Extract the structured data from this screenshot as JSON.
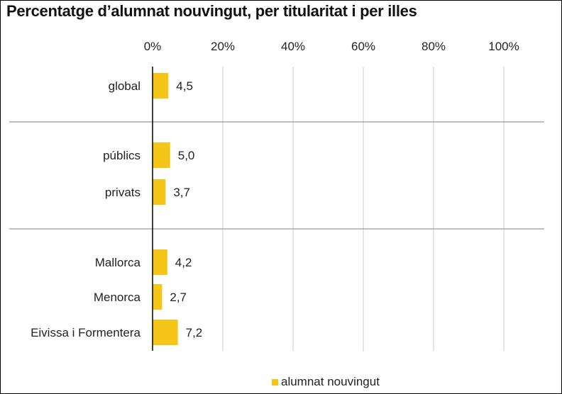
{
  "chart_data": {
    "type": "bar",
    "orientation": "horizontal",
    "title": "Percentatge d’alumnat nouvingut, per titularitat i per illes",
    "x_ticks": [
      "0%",
      "20%",
      "40%",
      "60%",
      "80%",
      "100%"
    ],
    "xlim": [
      0,
      100
    ],
    "grid": true,
    "legend_position": "bottom",
    "colors": {
      "bar": "#f5c518",
      "grid": "#c8c8c8",
      "separator": "#aaaaaa",
      "axis": "#000000"
    },
    "groups": [
      {
        "categories": [
          "global"
        ]
      },
      {
        "categories": [
          "públics",
          "privats"
        ]
      },
      {
        "categories": [
          "Mallorca",
          "Menorca",
          "Eivissa i Formentera"
        ]
      }
    ],
    "categories": [
      "global",
      "públics",
      "privats",
      "Mallorca",
      "Menorca",
      "Eivissa i Formentera"
    ],
    "series": [
      {
        "name": "alumnat nouvingut",
        "values": [
          4.5,
          5.0,
          3.7,
          4.2,
          2.7,
          7.2
        ],
        "labels": [
          "4,5",
          "5,0",
          "3,7",
          "4,2",
          "2,7",
          "7,2"
        ]
      }
    ]
  }
}
